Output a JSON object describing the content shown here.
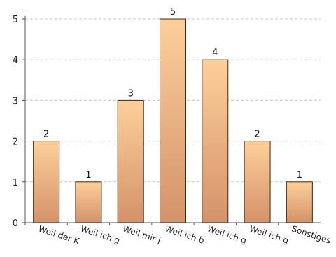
{
  "chart_data": {
    "type": "bar",
    "categories": [
      "Weil der K",
      "Weil ich g",
      "Weil mir j",
      "Weil ich b",
      "Weil ich g",
      "Weil ich g",
      "Sonstiges"
    ],
    "values": [
      2,
      1,
      3,
      5,
      4,
      2,
      1
    ],
    "data_labels": [
      "2",
      "1",
      "3",
      "5",
      "4",
      "2",
      "1"
    ],
    "y_ticks": [
      "0",
      "1",
      "2",
      "3",
      "4",
      "5"
    ],
    "ylim": [
      0,
      5
    ],
    "grid": true,
    "legend": "none",
    "colors": {
      "bar_top": "#fcd09a",
      "bar_bottom": "#d4926a",
      "bar_stroke": "#3a2a20",
      "grid": "#c8c8c8",
      "axis": "#555555"
    }
  }
}
